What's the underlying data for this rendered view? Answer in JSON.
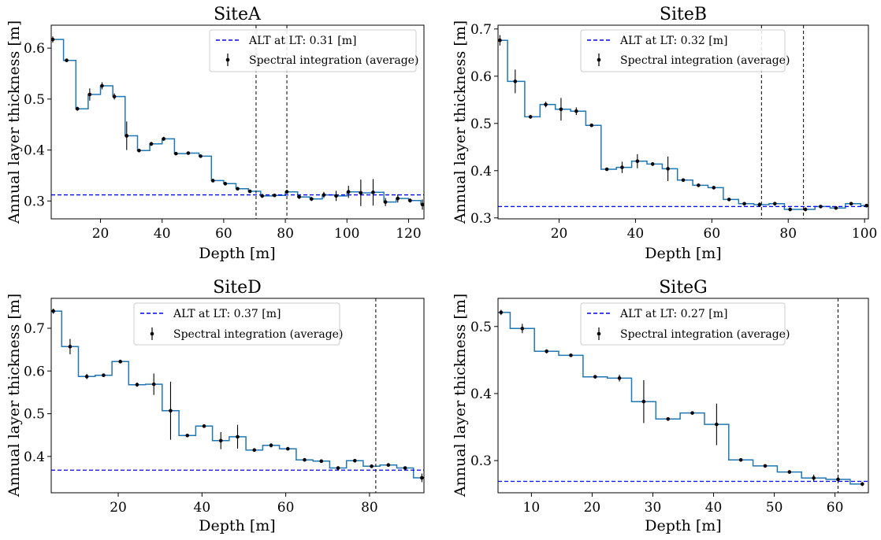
{
  "chart_data": [
    {
      "type": "line",
      "title": "SiteA",
      "xlabel": "Depth [m]",
      "ylabel": "Annual layer thickness [m]",
      "xlim": [
        4,
        125
      ],
      "ylim": [
        0.265,
        0.645
      ],
      "xticks": [
        20,
        40,
        60,
        80,
        100,
        120
      ],
      "yticks": [
        0.3,
        0.4,
        0.5,
        0.6
      ],
      "alt": 0.312,
      "vlines": [
        70.5,
        80.5
      ],
      "legend": [
        "ALT at LT: 0.31 [m]",
        "Spectral integration (average)"
      ],
      "legend_position": "top-right",
      "steps": [
        4,
        8,
        12,
        16,
        20,
        24,
        28,
        32,
        36,
        40,
        44,
        48,
        52,
        56,
        60,
        64,
        68,
        72,
        76,
        80,
        84,
        88,
        92,
        96,
        100,
        104,
        108,
        112,
        116,
        120,
        124
      ],
      "series": [
        {
          "x": [
            4.5,
            9,
            12.5,
            16.5,
            20.5,
            24.5,
            28.5,
            32.5,
            36.5,
            40.5,
            44.5,
            48.5,
            52.5,
            56.5,
            60.5,
            64.5,
            68.5,
            72.5,
            76.5,
            80.5,
            84.5,
            88.5,
            92.5,
            96.5,
            100.5,
            104.5,
            108.5,
            112.5,
            116.5,
            120.5,
            124.5
          ],
          "y": [
            0.617,
            0.576,
            0.481,
            0.509,
            0.526,
            0.505,
            0.428,
            0.399,
            0.412,
            0.422,
            0.393,
            0.394,
            0.388,
            0.34,
            0.334,
            0.324,
            0.319,
            0.31,
            0.311,
            0.318,
            0.308,
            0.304,
            0.312,
            0.31,
            0.318,
            0.316,
            0.317,
            0.298,
            0.305,
            0.301,
            0.293
          ],
          "yerr": [
            0.006,
            0.003,
            0.004,
            0.012,
            0.007,
            0.006,
            0.028,
            0.003,
            0.004,
            0.004,
            0.003,
            0.003,
            0.003,
            0.003,
            0.003,
            0.003,
            0.003,
            0.004,
            0.003,
            0.004,
            0.004,
            0.004,
            0.006,
            0.01,
            0.012,
            0.026,
            0.026,
            0.008,
            0.008,
            0.004,
            0.01
          ]
        }
      ]
    },
    {
      "type": "line",
      "title": "SiteB",
      "xlabel": "Depth [m]",
      "ylabel": "Annual layer thickness [m]",
      "xlim": [
        4,
        101
      ],
      "ylim": [
        0.298,
        0.708
      ],
      "xticks": [
        20,
        40,
        60,
        80,
        100
      ],
      "yticks": [
        0.3,
        0.4,
        0.5,
        0.6,
        0.7
      ],
      "alt": 0.324,
      "vlines": [
        73,
        84
      ],
      "legend": [
        "ALT at LT: 0.32 [m]",
        "Spectral integration (average)"
      ],
      "legend_position": "top-right",
      "steps": [
        4,
        6.5,
        11,
        15,
        19,
        23,
        27,
        31,
        35,
        39,
        43,
        47,
        51,
        55,
        59,
        63,
        67,
        71,
        75,
        79,
        83,
        87,
        91,
        95,
        99,
        101
      ],
      "series": [
        {
          "x": [
            4.5,
            8.5,
            12.5,
            16.5,
            20.5,
            24.5,
            28.5,
            32.5,
            36.5,
            40.5,
            44.5,
            48.5,
            52.5,
            56.5,
            60.5,
            64.5,
            68.5,
            72.5,
            76.5,
            80.5,
            84.5,
            88.5,
            92.5,
            96.5,
            100.5
          ],
          "y": [
            0.676,
            0.589,
            0.514,
            0.54,
            0.53,
            0.526,
            0.496,
            0.403,
            0.407,
            0.42,
            0.414,
            0.404,
            0.38,
            0.369,
            0.364,
            0.339,
            0.33,
            0.328,
            0.33,
            0.318,
            0.318,
            0.324,
            0.321,
            0.33,
            0.326
          ],
          "yerr": [
            0.011,
            0.025,
            0.004,
            0.006,
            0.024,
            0.008,
            0.003,
            0.003,
            0.012,
            0.015,
            0.004,
            0.026,
            0.003,
            0.003,
            0.003,
            0.003,
            0.003,
            0.005,
            0.004,
            0.004,
            0.004,
            0.003,
            0.003,
            0.003,
            0.003
          ]
        }
      ]
    },
    {
      "type": "line",
      "title": "SiteD",
      "xlabel": "Depth [m]",
      "ylabel": "Annual layer thickness [m]",
      "xlim": [
        4,
        93
      ],
      "ylim": [
        0.315,
        0.77
      ],
      "xticks": [
        20,
        40,
        60,
        80
      ],
      "yticks": [
        0.4,
        0.5,
        0.6,
        0.7
      ],
      "alt": 0.368,
      "vlines": [
        81.5
      ],
      "legend": [
        "ALT at LT: 0.37 [m]",
        "Spectral integration (average)"
      ],
      "legend_position": "top-center",
      "steps": [
        4,
        6.5,
        10.5,
        14.5,
        18.5,
        22.5,
        26.5,
        30.5,
        34.5,
        38.5,
        42.5,
        46.5,
        50.5,
        54.5,
        58.5,
        62.5,
        66.5,
        70.5,
        74.5,
        78.5,
        82.5,
        86.5,
        90.5,
        93
      ],
      "series": [
        {
          "x": [
            4.5,
            8.5,
            12.5,
            16.5,
            20.5,
            24.5,
            28.5,
            32.5,
            36.5,
            40.5,
            44.5,
            48.5,
            52.5,
            56.5,
            60.5,
            64.5,
            68.5,
            72.5,
            76.5,
            80.5,
            84.5,
            88.5,
            92.5
          ],
          "y": [
            0.74,
            0.657,
            0.587,
            0.59,
            0.622,
            0.568,
            0.569,
            0.507,
            0.449,
            0.471,
            0.437,
            0.446,
            0.415,
            0.426,
            0.418,
            0.392,
            0.389,
            0.373,
            0.39,
            0.377,
            0.38,
            0.373,
            0.35
          ],
          "yerr": [
            0.006,
            0.018,
            0.006,
            0.004,
            0.004,
            0.005,
            0.025,
            0.068,
            0.003,
            0.003,
            0.02,
            0.028,
            0.004,
            0.005,
            0.003,
            0.003,
            0.003,
            0.003,
            0.004,
            0.003,
            0.003,
            0.003,
            0.01
          ]
        }
      ]
    },
    {
      "type": "line",
      "title": "SiteG",
      "xlabel": "Depth [m]",
      "ylabel": "Annual layer thickness [m]",
      "xlim": [
        4.5,
        65.5
      ],
      "ylim": [
        0.252,
        0.542
      ],
      "xticks": [
        10,
        20,
        30,
        40,
        50,
        60
      ],
      "yticks": [
        0.3,
        0.4,
        0.5
      ],
      "alt": 0.269,
      "vlines": [
        60.5
      ],
      "legend": [
        "ALT at LT: 0.27 [m]",
        "Spectral integration (average)"
      ],
      "legend_position": "top-right",
      "steps": [
        4.5,
        6.5,
        10.5,
        14.5,
        18.5,
        22.5,
        26.5,
        30.5,
        34.5,
        38.5,
        42.5,
        46.5,
        50.5,
        54.5,
        58.5,
        62.5,
        64.5
      ],
      "series": [
        {
          "x": [
            5,
            8.5,
            12.5,
            16.5,
            20.5,
            24.5,
            28.5,
            32.5,
            36.5,
            40.5,
            44.5,
            48.5,
            52.5,
            56.5,
            60.5,
            64.5
          ],
          "y": [
            0.521,
            0.497,
            0.463,
            0.457,
            0.425,
            0.423,
            0.388,
            0.362,
            0.371,
            0.354,
            0.301,
            0.292,
            0.283,
            0.274,
            0.272,
            0.265
          ],
          "yerr": [
            0.004,
            0.007,
            0.003,
            0.002,
            0.002,
            0.005,
            0.032,
            0.002,
            0.002,
            0.031,
            0.002,
            0.002,
            0.002,
            0.005,
            0.002,
            0.003
          ]
        }
      ]
    }
  ]
}
